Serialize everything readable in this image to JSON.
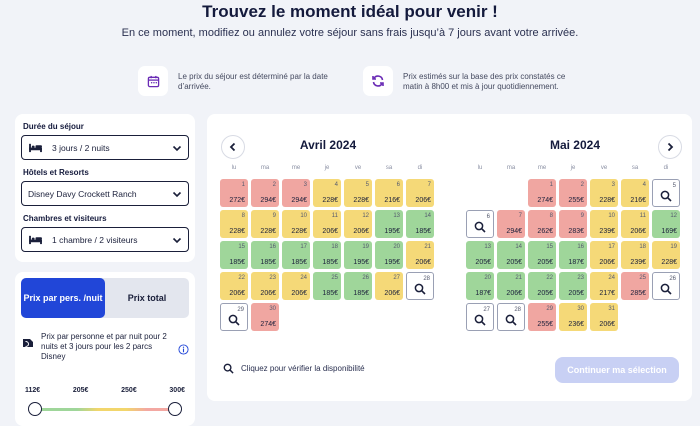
{
  "header": {
    "title": "Trouvez le moment idéal pour venir  !",
    "subtitle": "En ce moment, modifiez ou annulez votre séjour sans frais jusqu’à 7 jours avant votre arrivée."
  },
  "info": [
    {
      "icon": "calendar-icon",
      "text": "Le prix du séjour est déterminé par la date d’arrivée."
    },
    {
      "icon": "refresh-icon",
      "text": "Prix estimés sur la base des prix constatés ce matin à 8h00 et mis à jour quotidiennement."
    }
  ],
  "filters": {
    "duration_label": "Durée du séjour",
    "duration_value": "3 jours / 2 nuits",
    "hotel_label": "Hôtels et Resorts",
    "hotel_value": "Disney Davy Crockett Ranch",
    "rooms_label": "Chambres et visiteurs",
    "rooms_value": "1 chambre / 2 visiteurs"
  },
  "price_mode": {
    "per_person": "Prix par pers. /nuit",
    "total": "Prix total",
    "active": "per_person",
    "note": "Prix par personne et par nuit pour 2 nuits et 3 jours pour les 2 parcs Disney"
  },
  "slider": {
    "ticks": [
      "112€",
      "205€",
      "250€",
      "300€"
    ],
    "min_value": 112,
    "max_value": 300
  },
  "colors": {
    "accent": "#2146d8",
    "green": "#9fd69a",
    "yellow": "#f5d978",
    "red": "#f0a6a1"
  },
  "calendar": {
    "weekdays": [
      "lu",
      "ma",
      "me",
      "je",
      "ve",
      "sa",
      "di"
    ],
    "months": [
      {
        "title": "Avril 2024",
        "offset": 0,
        "days": [
          {
            "d": "1",
            "p": "272€",
            "c": "red"
          },
          {
            "d": "2",
            "p": "294€",
            "c": "red"
          },
          {
            "d": "3",
            "p": "294€",
            "c": "red"
          },
          {
            "d": "4",
            "p": "228€",
            "c": "yellow"
          },
          {
            "d": "5",
            "p": "228€",
            "c": "yellow"
          },
          {
            "d": "6",
            "p": "216€",
            "c": "yellow"
          },
          {
            "d": "7",
            "p": "206€",
            "c": "yellow"
          },
          {
            "d": "8",
            "p": "228€",
            "c": "yellow"
          },
          {
            "d": "9",
            "p": "228€",
            "c": "yellow"
          },
          {
            "d": "10",
            "p": "228€",
            "c": "yellow"
          },
          {
            "d": "11",
            "p": "206€",
            "c": "yellow"
          },
          {
            "d": "12",
            "p": "206€",
            "c": "yellow"
          },
          {
            "d": "13",
            "p": "195€",
            "c": "green"
          },
          {
            "d": "14",
            "p": "185€",
            "c": "green"
          },
          {
            "d": "15",
            "p": "185€",
            "c": "green"
          },
          {
            "d": "16",
            "p": "185€",
            "c": "green"
          },
          {
            "d": "17",
            "p": "185€",
            "c": "green"
          },
          {
            "d": "18",
            "p": "185€",
            "c": "green"
          },
          {
            "d": "19",
            "p": "195€",
            "c": "green"
          },
          {
            "d": "20",
            "p": "195€",
            "c": "green"
          },
          {
            "d": "21",
            "p": "206€",
            "c": "yellow"
          },
          {
            "d": "22",
            "p": "206€",
            "c": "yellow"
          },
          {
            "d": "23",
            "p": "206€",
            "c": "yellow"
          },
          {
            "d": "24",
            "p": "206€",
            "c": "yellow"
          },
          {
            "d": "25",
            "p": "185€",
            "c": "green"
          },
          {
            "d": "26",
            "p": "185€",
            "c": "green"
          },
          {
            "d": "27",
            "p": "206€",
            "c": "yellow"
          },
          {
            "d": "28",
            "p": "",
            "c": "search"
          },
          {
            "d": "29",
            "p": "",
            "c": "search"
          },
          {
            "d": "30",
            "p": "274€",
            "c": "red"
          }
        ]
      },
      {
        "title": "Mai 2024",
        "offset": 2,
        "days": [
          {
            "d": "1",
            "p": "274€",
            "c": "red"
          },
          {
            "d": "2",
            "p": "255€",
            "c": "red"
          },
          {
            "d": "3",
            "p": "228€",
            "c": "yellow"
          },
          {
            "d": "4",
            "p": "216€",
            "c": "yellow"
          },
          {
            "d": "5",
            "p": "",
            "c": "search"
          },
          {
            "d": "6",
            "p": "",
            "c": "search"
          },
          {
            "d": "7",
            "p": "294€",
            "c": "red"
          },
          {
            "d": "8",
            "p": "262€",
            "c": "red"
          },
          {
            "d": "9",
            "p": "283€",
            "c": "red"
          },
          {
            "d": "10",
            "p": "239€",
            "c": "yellow"
          },
          {
            "d": "11",
            "p": "206€",
            "c": "yellow"
          },
          {
            "d": "12",
            "p": "169€",
            "c": "green"
          },
          {
            "d": "13",
            "p": "205€",
            "c": "green"
          },
          {
            "d": "14",
            "p": "205€",
            "c": "green"
          },
          {
            "d": "15",
            "p": "205€",
            "c": "green"
          },
          {
            "d": "16",
            "p": "187€",
            "c": "green"
          },
          {
            "d": "17",
            "p": "206€",
            "c": "yellow"
          },
          {
            "d": "18",
            "p": "239€",
            "c": "yellow"
          },
          {
            "d": "19",
            "p": "228€",
            "c": "yellow"
          },
          {
            "d": "20",
            "p": "187€",
            "c": "green"
          },
          {
            "d": "21",
            "p": "206€",
            "c": "green"
          },
          {
            "d": "22",
            "p": "205€",
            "c": "green"
          },
          {
            "d": "23",
            "p": "205€",
            "c": "green"
          },
          {
            "d": "24",
            "p": "217€",
            "c": "yellow"
          },
          {
            "d": "25",
            "p": "285€",
            "c": "red"
          },
          {
            "d": "26",
            "p": "",
            "c": "search"
          },
          {
            "d": "27",
            "p": "",
            "c": "search"
          },
          {
            "d": "28",
            "p": "",
            "c": "search"
          },
          {
            "d": "29",
            "p": "255€",
            "c": "red"
          },
          {
            "d": "30",
            "p": "236€",
            "c": "yellow"
          },
          {
            "d": "31",
            "p": "206€",
            "c": "yellow"
          }
        ]
      }
    ],
    "hint": "Cliquez pour vérifier la disponibilité",
    "cta": "Continuer ma sélection"
  }
}
